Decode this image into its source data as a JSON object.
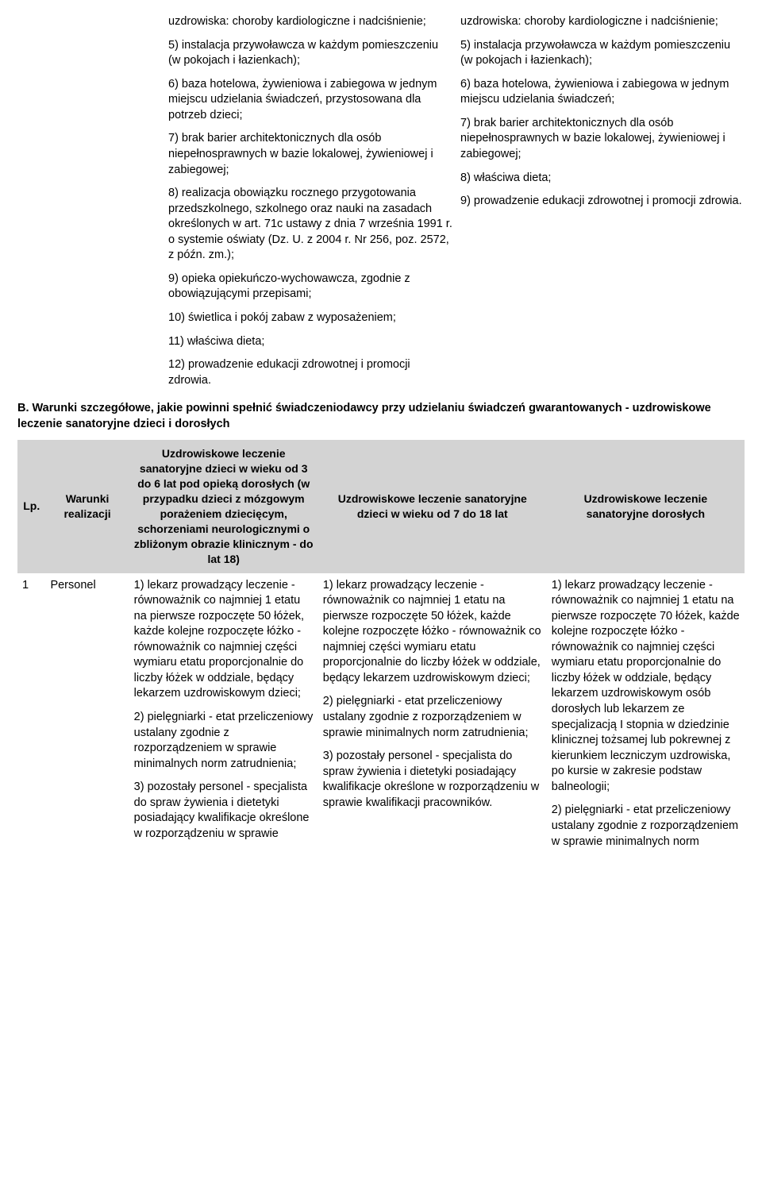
{
  "top": {
    "left": [
      "uzdrowiska: choroby kardiologiczne i nadciśnienie;",
      "5) instalacja przywoławcza w każdym pomieszczeniu (w pokojach i łazienkach);",
      "6) baza hotelowa, żywieniowa i zabiegowa w jednym miejscu udzielania świadczeń, przystosowana dla potrzeb dzieci;",
      "7) brak barier architektonicznych dla osób niepełnosprawnych w bazie lokalowej, żywieniowej i zabiegowej;",
      "8) realizacja obowiązku rocznego przygotowania przedszkolnego, szkolnego oraz nauki na zasadach określonych w art. 71c ustawy z dnia 7 września 1991 r. o systemie oświaty (Dz. U. z 2004 r. Nr 256, poz. 2572, z późn. zm.);",
      "9) opieka opiekuńczo-wychowawcza, zgodnie z obowiązującymi przepisami;",
      "10) świetlica i pokój zabaw z wyposażeniem;",
      "11) właściwa dieta;",
      "12) prowadzenie edukacji zdrowotnej i promocji zdrowia."
    ],
    "right": [
      "uzdrowiska: choroby kardiologiczne i nadciśnienie;",
      "5) instalacja przywoławcza w każdym pomieszczeniu (w pokojach i łazienkach);",
      "6) baza hotelowa, żywieniowa i zabiegowa w jednym miejscu udzielania świadczeń;",
      "7) brak barier architektonicznych dla osób niepełnosprawnych w bazie lokalowej, żywieniowej i zabiegowej;",
      "8) właściwa dieta;",
      "9) prowadzenie edukacji zdrowotnej i promocji zdrowia."
    ]
  },
  "section_title": "B. Warunki szczegółowe, jakie powinni spełnić świadczeniodawcy przy udzielaniu świadczeń gwarantowanych - uzdrowiskowe leczenie sanatoryjne dzieci i dorosłych",
  "table": {
    "headers": {
      "lp": "Lp.",
      "warunki": "Warunki realizacji",
      "colA": "Uzdrowiskowe leczenie sanatoryjne dzieci w wieku od 3 do 6 lat pod opieką dorosłych (w przypadku dzieci z mózgowym porażeniem dziecięcym, schorzeniami neurologicznymi o zbliżonym obrazie klinicznym - do lat 18)",
      "colB": "Uzdrowiskowe leczenie sanatoryjne dzieci w wieku od 7 do 18 lat",
      "colC": "Uzdrowiskowe leczenie sanatoryjne dorosłych"
    },
    "row1": {
      "lp": "1",
      "warunki": "Personel",
      "colA": [
        "1) lekarz prowadzący leczenie - równoważnik co najmniej 1 etatu na pierwsze rozpoczęte 50 łóżek, każde kolejne rozpoczęte łóżko - równoważnik co najmniej części wymiaru etatu proporcjonalnie do liczby łóżek w oddziale, będący lekarzem uzdrowiskowym dzieci;",
        "2) pielęgniarki - etat przeliczeniowy ustalany zgodnie z rozporządzeniem w sprawie minimalnych norm zatrudnienia;",
        "3) pozostały personel - specjalista do spraw żywienia i dietetyki posiadający kwalifikacje określone w rozporządzeniu w sprawie"
      ],
      "colB": [
        "1) lekarz prowadzący leczenie - równoważnik co najmniej 1 etatu na pierwsze rozpoczęte 50 łóżek, każde kolejne rozpoczęte łóżko - równoważnik co najmniej części wymiaru etatu proporcjonalnie do liczby łóżek w oddziale, będący lekarzem uzdrowiskowym dzieci;",
        "2) pielęgniarki - etat przeliczeniowy ustalany zgodnie z rozporządzeniem w sprawie minimalnych norm zatrudnienia;",
        "3) pozostały personel - specjalista do spraw żywienia i dietetyki posiadający kwalifikacje określone w rozporządzeniu w sprawie kwalifikacji pracowników."
      ],
      "colC": [
        "1) lekarz prowadzący leczenie - równoważnik co najmniej 1 etatu na pierwsze rozpoczęte 70 łóżek, każde kolejne rozpoczęte łóżko - równoważnik co najmniej części wymiaru etatu proporcjonalnie do liczby łóżek w oddziale, będący lekarzem uzdrowiskowym osób dorosłych lub lekarzem ze specjalizacją I stopnia w dziedzinie klinicznej tożsamej lub pokrewnej z kierunkiem leczniczym uzdrowiska, po kursie w zakresie podstaw balneologii;",
        "2) pielęgniarki - etat przeliczeniowy ustalany zgodnie z rozporządzeniem w sprawie minimalnych norm"
      ]
    }
  }
}
